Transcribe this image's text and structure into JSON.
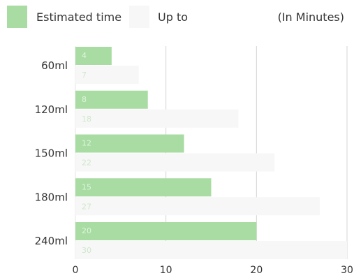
{
  "chart_data": {
    "type": "bar",
    "orientation": "horizontal",
    "unit_note": "(In Minutes)",
    "categories": [
      "60ml",
      "120ml",
      "150ml",
      "180ml",
      "240ml"
    ],
    "series": [
      {
        "name": "Estimated time",
        "values": [
          4,
          8,
          12,
          15,
          20
        ],
        "color": "#a8dca3",
        "label_color": "#dff4dc"
      },
      {
        "name": "Up to",
        "values": [
          7,
          18,
          22,
          27,
          30
        ],
        "color": "#f7f7f7",
        "label_color": "#cfe8cb"
      }
    ],
    "xlim": [
      0,
      30
    ],
    "x_ticks": [
      0,
      10,
      20,
      30
    ],
    "grid": true,
    "legend_position": "top-left"
  }
}
